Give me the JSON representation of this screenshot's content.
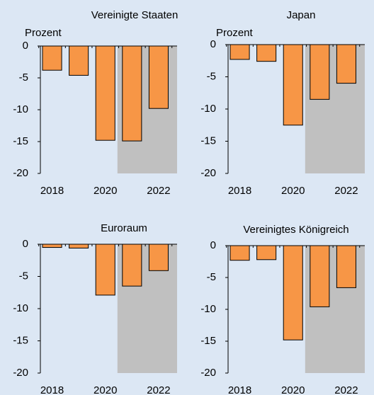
{
  "chart_data": [
    {
      "type": "bar",
      "title": "Vereinigte Staaten",
      "ylabel": "Prozent",
      "categories": [
        "2018",
        null,
        "2020",
        null,
        "2022"
      ],
      "values": [
        -3.8,
        -4.6,
        -14.8,
        -14.9,
        -9.8
      ],
      "color": "#f79646",
      "shade_color": "#c0c0c0",
      "shade_from_index": 3,
      "ylim": [
        -20,
        0
      ],
      "yticks": [
        0,
        -5,
        -10,
        -15,
        -20
      ]
    },
    {
      "type": "bar",
      "title": "Japan",
      "ylabel": "Prozent",
      "categories": [
        "2018",
        null,
        "2020",
        null,
        "2022"
      ],
      "values": [
        -2.3,
        -2.6,
        -12.5,
        -8.5,
        -6.0
      ],
      "color": "#f79646",
      "shade_color": "#c0c0c0",
      "shade_from_index": 3,
      "ylim": [
        -20,
        0
      ],
      "yticks": [
        0,
        -5,
        -10,
        -15,
        -20
      ]
    },
    {
      "type": "bar",
      "title": "Euroraum",
      "categories": [
        "2018",
        null,
        "2020",
        null,
        "2022"
      ],
      "values": [
        -0.5,
        -0.6,
        -7.9,
        -6.5,
        -4.1
      ],
      "color": "#f79646",
      "shade_color": "#c0c0c0",
      "shade_from_index": 3,
      "ylim": [
        -20,
        0
      ],
      "yticks": [
        0,
        -5,
        -10,
        -15,
        -20
      ]
    },
    {
      "type": "bar",
      "title": "Vereinigtes Königreich",
      "categories": [
        "2018",
        null,
        "2020",
        null,
        "2022"
      ],
      "values": [
        -2.3,
        -2.2,
        -14.8,
        -9.6,
        -6.6
      ],
      "color": "#f79646",
      "shade_color": "#c0c0c0",
      "shade_from_index": 3,
      "ylim": [
        -20,
        0
      ],
      "yticks": [
        0,
        -5,
        -10,
        -15,
        -20
      ]
    }
  ]
}
